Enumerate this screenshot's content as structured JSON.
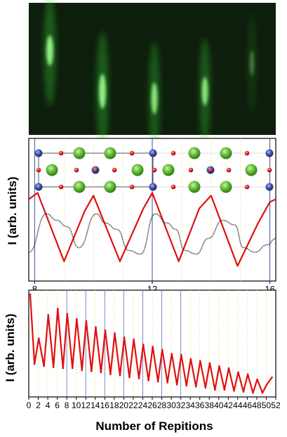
{
  "chart_data": [
    {
      "type": "image",
      "panel": "rheed-pattern",
      "colors": {
        "background": "#0a1a0a",
        "streak": "#38e03a"
      }
    },
    {
      "type": "line",
      "panel": "oscillation-zoom",
      "ylabel": "I (arb. units)",
      "xlim": [
        7.8,
        16.2
      ],
      "xticks": [
        "8",
        "12",
        "16"
      ],
      "vlines": [
        8,
        12,
        16
      ],
      "grid": "dotted vertical at every repetition",
      "crystal_inset": true,
      "colors": {
        "series_red": "#e01010",
        "series_black": "#222222",
        "atom_green": "#5cb830",
        "atom_blue": "#3a4fa0",
        "atom_red": "#e02020"
      },
      "series": [
        {
          "color": "#e01010",
          "x": [
            7.8,
            8.1,
            9.0,
            9.7,
            10.0,
            10.9,
            11.7,
            12.0,
            12.9,
            13.6,
            14.0,
            14.9,
            15.6,
            16.0,
            16.2
          ],
          "values": [
            0.88,
            0.95,
            0.2,
            0.75,
            0.92,
            0.2,
            0.78,
            0.95,
            0.2,
            0.78,
            0.92,
            0.15,
            0.62,
            0.85,
            0.88
          ]
        },
        {
          "color": "#222222",
          "x": [
            7.8,
            8.4,
            8.75,
            9.1,
            9.5,
            10.1,
            10.4,
            10.8,
            11.2,
            11.6,
            12.1,
            12.5,
            12.8,
            13.1,
            13.5,
            13.9,
            14.4,
            14.8,
            15.1,
            15.5,
            15.9,
            16.2
          ],
          "values": [
            0.3,
            0.72,
            0.65,
            0.58,
            0.35,
            0.72,
            0.62,
            0.55,
            0.32,
            0.28,
            0.72,
            0.62,
            0.55,
            0.32,
            0.28,
            0.45,
            0.65,
            0.6,
            0.35,
            0.3,
            0.38,
            0.45
          ]
        }
      ]
    },
    {
      "type": "line",
      "panel": "oscillation-full",
      "xlabel": "Number of Repitions",
      "ylabel": "I (arb. units)",
      "xlim": [
        0,
        52
      ],
      "xticks": [
        "0",
        "2",
        "4",
        "6",
        "8",
        "10",
        "12",
        "14",
        "16",
        "18",
        "20",
        "22",
        "24",
        "26",
        "28",
        "30",
        "32",
        "34",
        "36",
        "38",
        "40",
        "42",
        "44",
        "46",
        "48",
        "50",
        "52"
      ],
      "vlines": [
        8,
        12,
        16,
        20,
        24,
        28,
        32
      ],
      "colors": {
        "series_red": "#e01010"
      },
      "series": [
        {
          "color": "#e01010",
          "peaks_x": [
            0.3,
            2.1,
            4.1,
            6.1,
            8.1,
            10.1,
            12.1,
            14.1,
            16.1,
            18.1,
            20.1,
            22.1,
            24.1,
            26.1,
            28.1,
            30.1,
            32.1,
            34.1,
            36.1,
            38.1,
            40.1,
            42.1,
            44.1,
            46.1,
            48.1,
            50.1
          ],
          "peaks": [
            0.98,
            0.55,
            0.78,
            0.84,
            0.79,
            0.74,
            0.72,
            0.66,
            0.63,
            0.6,
            0.56,
            0.54,
            0.49,
            0.47,
            0.44,
            0.4,
            0.39,
            0.35,
            0.33,
            0.31,
            0.28,
            0.26,
            0.22,
            0.2,
            0.15,
            0.1
          ],
          "troughs_x": [
            1.2,
            3.2,
            5.2,
            7.2,
            9.2,
            11.2,
            13.2,
            15.2,
            17.2,
            19.2,
            21.2,
            23.2,
            25.2,
            27.2,
            29.2,
            31.2,
            33.2,
            35.2,
            37.2,
            39.2,
            41.2,
            43.2,
            45.2,
            47.2,
            49.2,
            51.2
          ],
          "troughs": [
            0.3,
            0.28,
            0.27,
            0.26,
            0.26,
            0.24,
            0.23,
            0.22,
            0.2,
            0.19,
            0.17,
            0.16,
            0.14,
            0.13,
            0.12,
            0.1,
            0.09,
            0.08,
            0.07,
            0.05,
            0.05,
            0.04,
            0.03,
            0.02,
            0.02,
            0.17
          ]
        }
      ]
    }
  ]
}
